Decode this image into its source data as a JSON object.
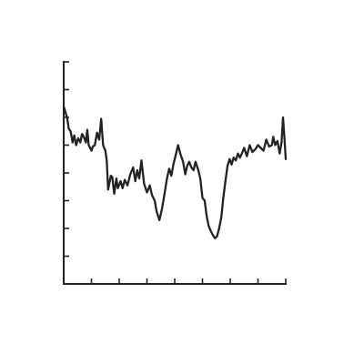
{
  "chart_data": {
    "type": "line",
    "title": "",
    "xlabel": "",
    "ylabel": "",
    "xlim": [
      0,
      8
    ],
    "ylim": [
      0,
      8
    ],
    "x_ticks": [
      0,
      1,
      2,
      3,
      4,
      5,
      6,
      7,
      8
    ],
    "y_ticks": [
      0,
      1,
      2,
      3,
      4,
      5,
      6,
      7,
      8
    ],
    "x_tick_labels_visible": false,
    "y_tick_labels_visible": false,
    "grid": false,
    "line_color": "#222222",
    "series": [
      {
        "x": [
          0,
          0.06,
          0.12,
          0.18,
          0.25,
          0.32,
          0.38,
          0.45,
          0.52,
          0.6,
          0.66,
          0.72,
          0.8,
          0.85,
          0.9,
          1.0,
          1.05,
          1.12,
          1.2,
          1.28,
          1.35,
          1.42,
          1.5,
          1.55,
          1.6,
          1.7,
          1.75,
          1.82,
          1.9,
          1.95,
          2.05,
          2.12,
          2.2,
          2.3,
          2.4,
          2.5,
          2.58,
          2.65,
          2.72,
          2.8,
          2.9,
          3.0,
          3.1,
          3.18,
          3.28,
          3.35,
          3.45,
          3.55,
          3.65,
          3.72,
          3.8,
          3.88,
          3.95,
          4.05,
          4.12,
          4.2,
          4.3,
          4.38,
          4.45,
          4.52,
          4.6,
          4.68,
          4.75,
          4.85,
          4.92,
          5.0,
          5.08,
          5.15,
          5.22,
          5.3,
          5.38,
          5.45,
          5.52,
          5.6,
          5.68,
          5.75,
          5.82,
          5.9,
          5.98,
          6.05,
          6.12,
          6.2,
          6.28,
          6.35,
          6.42,
          6.5,
          6.6,
          6.7,
          6.8,
          6.9,
          7.0,
          7.1,
          7.2,
          7.3,
          7.4,
          7.5,
          7.55,
          7.62,
          7.7,
          7.78,
          7.85,
          7.9,
          7.95,
          8.0
        ],
        "y": [
          6.4,
          6.2,
          6.0,
          5.6,
          5.5,
          5.1,
          5.35,
          5.0,
          5.25,
          5.1,
          5.4,
          5.3,
          5.1,
          5.55,
          5.0,
          4.8,
          4.95,
          5.0,
          5.45,
          5.2,
          5.95,
          5.0,
          4.8,
          4.45,
          3.4,
          3.9,
          3.85,
          3.25,
          3.8,
          3.45,
          3.7,
          3.45,
          3.75,
          3.55,
          3.95,
          4.2,
          3.7,
          4.1,
          3.8,
          4.45,
          3.6,
          3.3,
          3.55,
          3.2,
          3.0,
          2.6,
          2.3,
          2.75,
          3.35,
          3.8,
          4.15,
          3.9,
          4.3,
          4.7,
          5.0,
          4.7,
          4.4,
          3.95,
          4.25,
          4.4,
          4.2,
          4.1,
          4.4,
          4.1,
          3.8,
          3.1,
          3.0,
          2.45,
          2.1,
          1.9,
          1.75,
          1.65,
          1.7,
          2.0,
          2.4,
          3.1,
          3.65,
          4.25,
          4.5,
          4.3,
          4.55,
          4.45,
          4.7,
          4.55,
          4.7,
          4.9,
          4.6,
          5.0,
          4.75,
          4.85,
          5.0,
          4.9,
          4.8,
          5.2,
          4.95,
          5.0,
          5.3,
          5.0,
          5.15,
          4.7,
          5.1,
          6.0,
          5.3,
          4.5
        ]
      }
    ]
  }
}
